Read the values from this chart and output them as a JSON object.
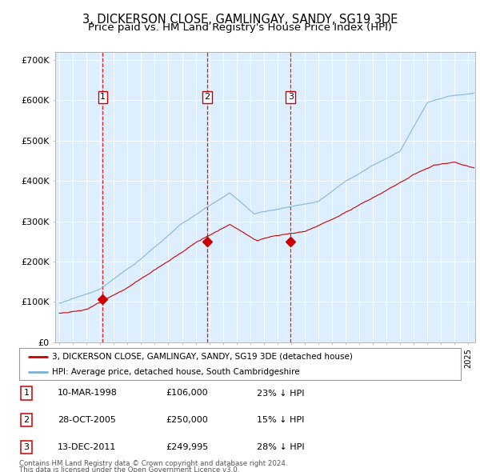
{
  "title": "3, DICKERSON CLOSE, GAMLINGAY, SANDY, SG19 3DE",
  "subtitle": "Price paid vs. HM Land Registry's House Price Index (HPI)",
  "title_fontsize": 10.5,
  "subtitle_fontsize": 9.5,
  "background_color": "#ddeeff",
  "red_line_color": "#cc0000",
  "blue_line_color": "#7ab0d4",
  "grid_color": "#ffffff",
  "legend_line1": "3, DICKERSON CLOSE, GAMLINGAY, SANDY, SG19 3DE (detached house)",
  "legend_line2": "HPI: Average price, detached house, South Cambridgeshire",
  "footer1": "Contains HM Land Registry data © Crown copyright and database right 2024.",
  "footer2": "This data is licensed under the Open Government Licence v3.0.",
  "sales": [
    {
      "num": 1,
      "date_label": "10-MAR-1998",
      "price": "£106,000",
      "pct": "23% ↓ HPI",
      "date_x": 1998.19,
      "price_y": 106000
    },
    {
      "num": 2,
      "date_label": "28-OCT-2005",
      "price": "£250,000",
      "pct": "15% ↓ HPI",
      "date_x": 2005.82,
      "price_y": 250000
    },
    {
      "num": 3,
      "date_label": "13-DEC-2011",
      "price": "£249,995",
      "pct": "28% ↓ HPI",
      "date_x": 2011.96,
      "price_y": 249995
    }
  ],
  "ylim": [
    0,
    720000
  ],
  "yticks": [
    0,
    100000,
    200000,
    300000,
    400000,
    500000,
    600000,
    700000
  ],
  "ytick_labels": [
    "£0",
    "£100K",
    "£200K",
    "£300K",
    "£400K",
    "£500K",
    "£600K",
    "£700K"
  ],
  "xlim_start": 1994.7,
  "xlim_end": 2025.5
}
